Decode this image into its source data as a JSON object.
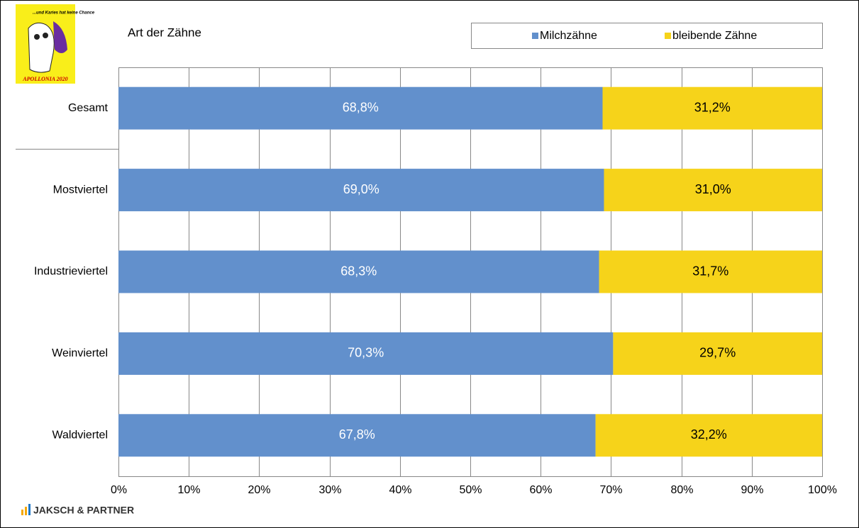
{
  "logo": {
    "slogan": "...und Karies hat keine Chance",
    "caption": "APOLLONIA 2020"
  },
  "footer": "JAKSCH & PARTNER",
  "chart_data": {
    "type": "stacked-barh",
    "title": "Art der Zähne",
    "categories": [
      "Gesamt",
      "Mostviertel",
      "Industrieviertel",
      "Weinviertel",
      "Waldviertel"
    ],
    "series": [
      {
        "name": "Milchzähne",
        "color": "#6290cc",
        "values": [
          68.8,
          69.0,
          68.3,
          70.3,
          67.8
        ],
        "value_labels": [
          "68,8%",
          "69,0%",
          "68,3%",
          "70,3%",
          "67,8%"
        ]
      },
      {
        "name": "bleibende Zähne",
        "color": "#f6d31a",
        "values": [
          31.2,
          31.0,
          31.7,
          29.7,
          32.2
        ],
        "value_labels": [
          "31,2%",
          "31,0%",
          "31,7%",
          "29,7%",
          "32,2%"
        ]
      }
    ],
    "xlim": [
      0,
      100
    ],
    "xticks": [
      {
        "value": 0,
        "label": "0%"
      },
      {
        "value": 10,
        "label": "10%"
      },
      {
        "value": 20,
        "label": "20%"
      },
      {
        "value": 30,
        "label": "30%"
      },
      {
        "value": 40,
        "label": "40%"
      },
      {
        "value": 50,
        "label": "50%"
      },
      {
        "value": 60,
        "label": "60%"
      },
      {
        "value": 70,
        "label": "70%"
      },
      {
        "value": 80,
        "label": "80%"
      },
      {
        "value": 90,
        "label": "90%"
      },
      {
        "value": 100,
        "label": "100%"
      }
    ],
    "grid": true,
    "legend": "top-right"
  }
}
